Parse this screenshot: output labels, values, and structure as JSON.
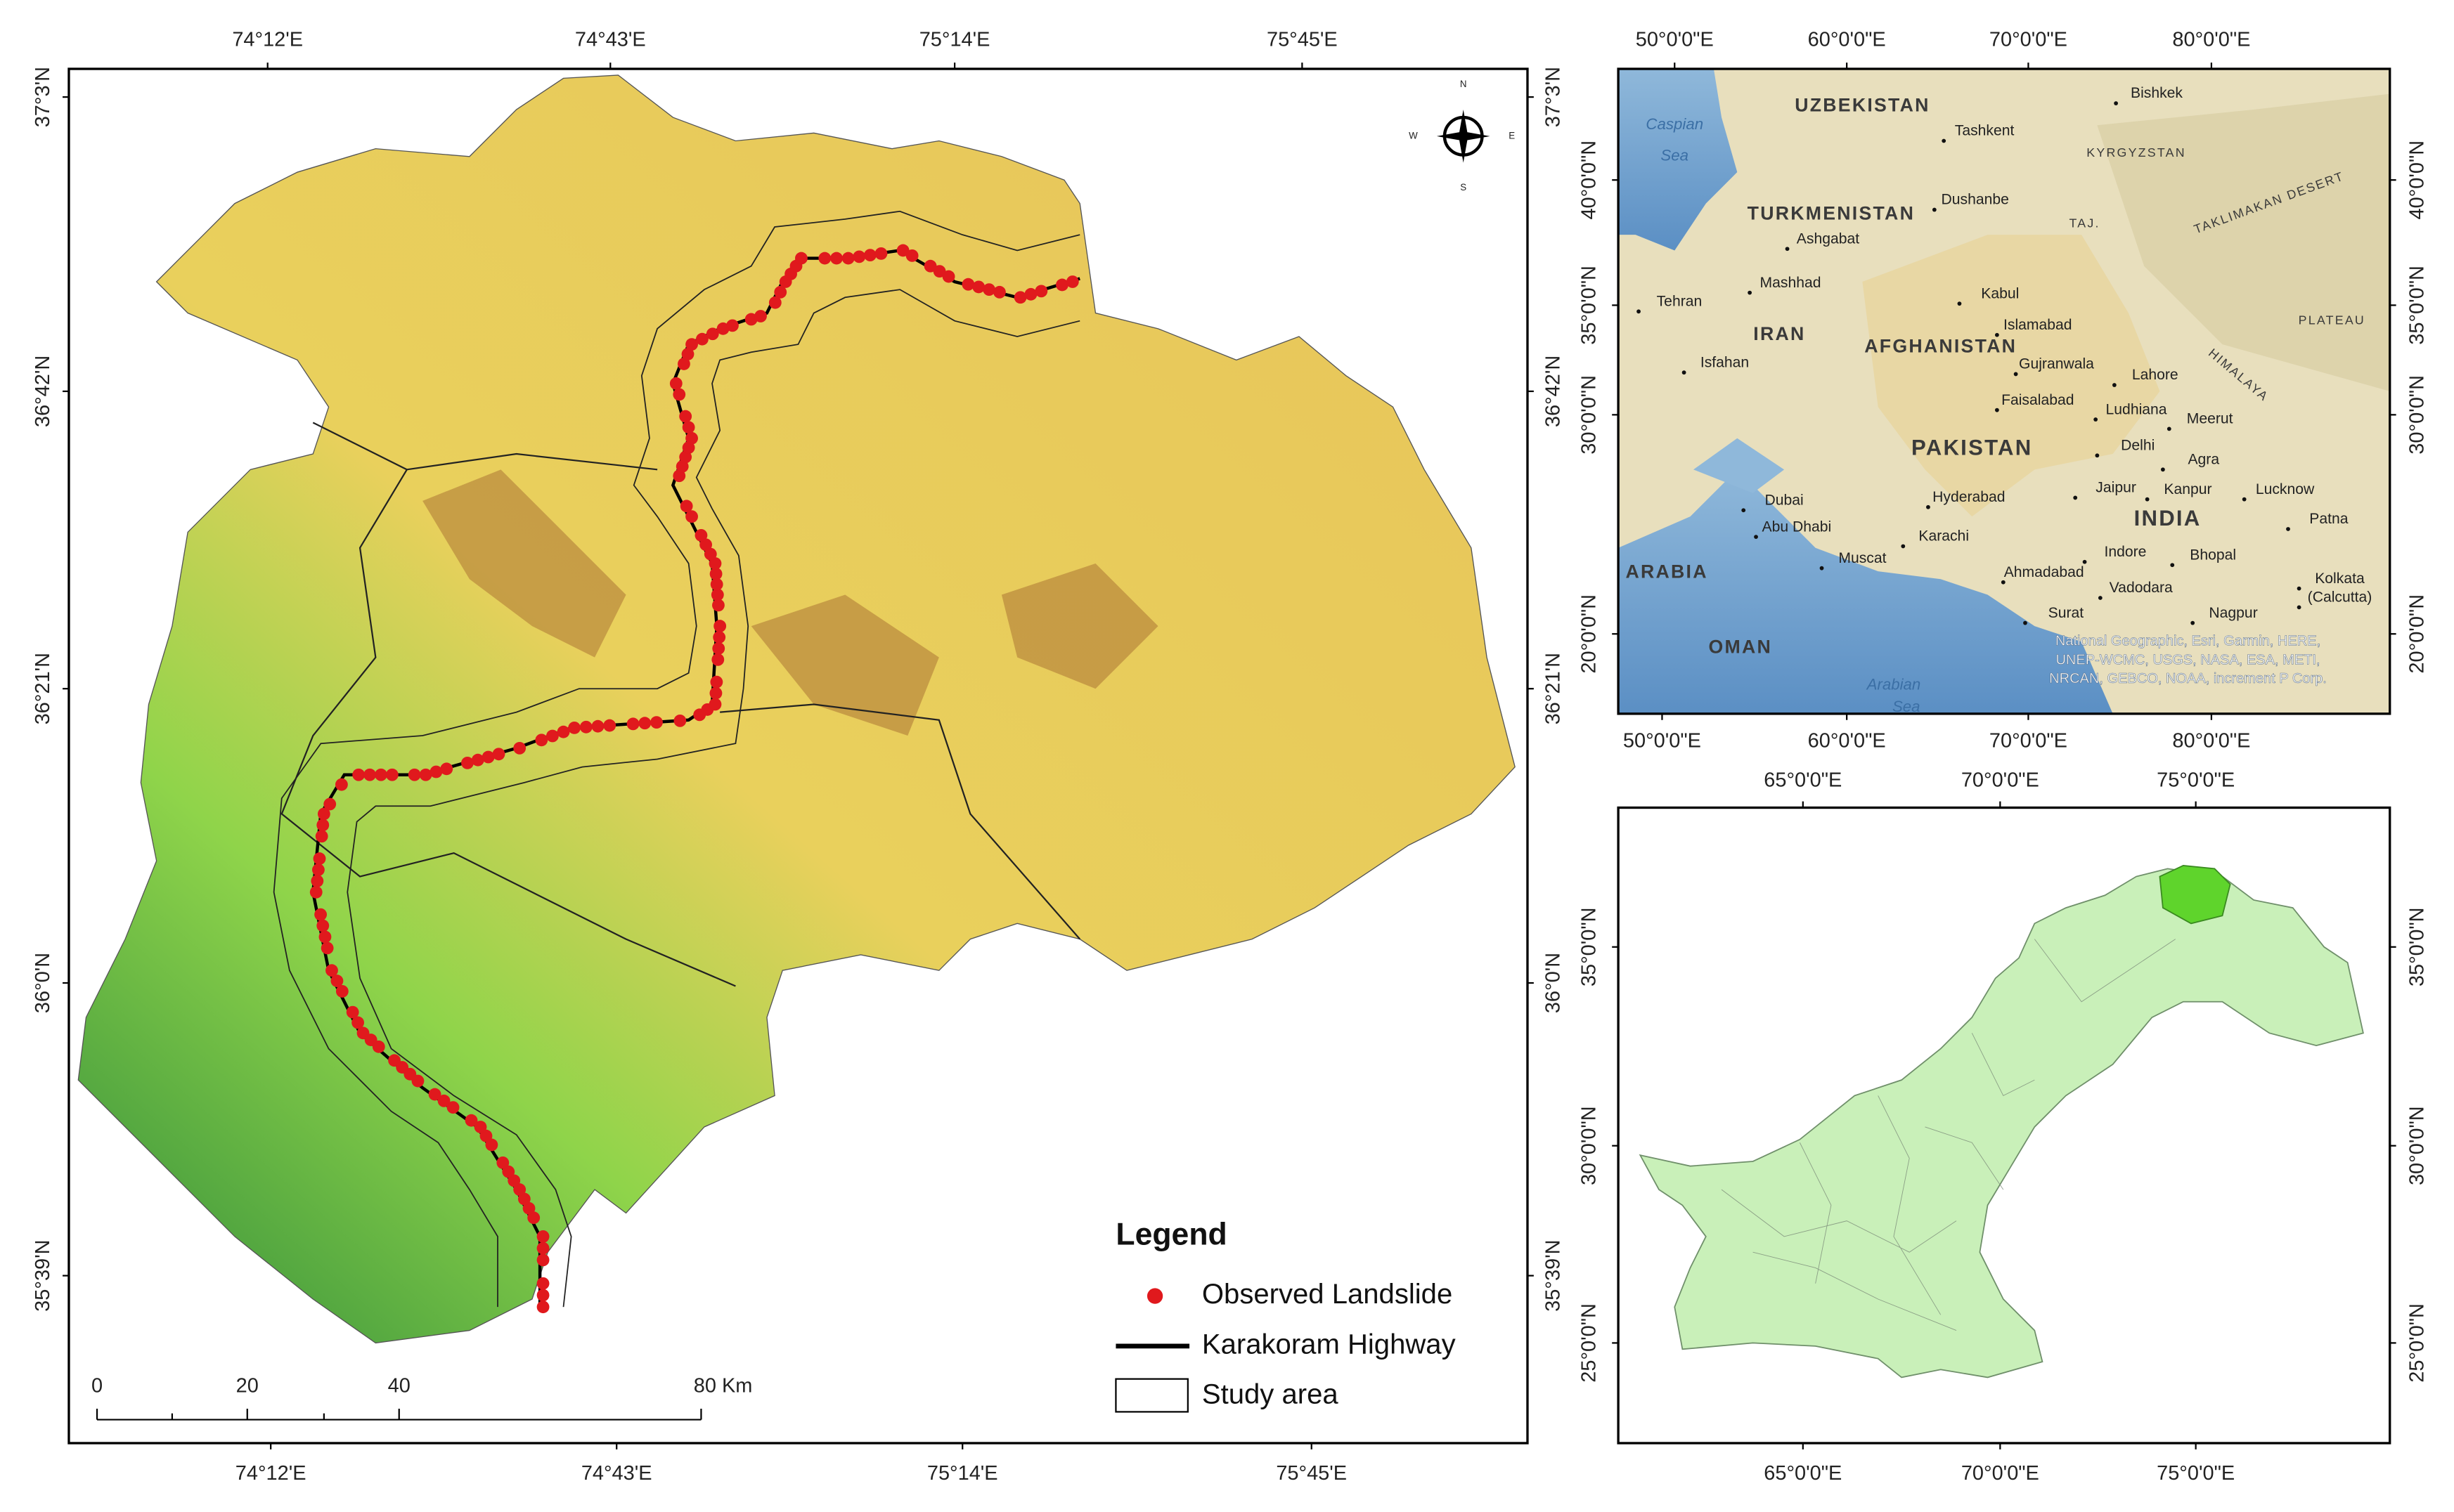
{
  "main_map": {
    "top_ticks": [
      "74°12'E",
      "74°43'E",
      "75°14'E",
      "75°45'E"
    ],
    "bottom_ticks": [
      "74°12'E",
      "74°43'E",
      "75°14'E",
      "75°45'E"
    ],
    "left_ticks": [
      "37°3'N",
      "36°42'N",
      "36°21'N",
      "36°0'N",
      "35°39'N"
    ],
    "right_ticks": [
      "37°3'N",
      "36°42'N",
      "36°21'N",
      "36°0'N",
      "35°39'N"
    ],
    "north_arrow": [
      "N",
      "E",
      "S",
      "W"
    ],
    "legend": {
      "title": "Legend",
      "items": [
        "Observed Landslide",
        "Karakoram Highway",
        "Study area"
      ]
    },
    "scale_bar": [
      "0",
      "20",
      "40",
      "80 Km"
    ]
  },
  "locator_map": {
    "top_ticks": [
      "50°0'0\"E",
      "60°0'0\"E",
      "70°0'0\"E",
      "80°0'0\"E"
    ],
    "bottom_ticks": [
      "50°0'0\"E",
      "60°0'0\"E",
      "70°0'0\"E",
      "80°0'0\"E"
    ],
    "left_ticks": [
      "40°0'0\"N",
      "35°0'0\"N",
      "30°0'0\"N",
      "20°0'0\"N"
    ],
    "right_ticks": [
      "40°0'0\"N",
      "35°0'0\"N",
      "30°0'0\"N",
      "20°0'0\"N"
    ],
    "countries": [
      "UZBEKISTAN",
      "TURKMENISTAN",
      "IRAN",
      "AFGHANISTAN",
      "PAKISTAN",
      "INDIA",
      "ARABIA",
      "OMAN",
      "KYRGYZSTAN",
      "TAJ.",
      "HIMALAYA",
      "TAKLIMAKAN DESERT",
      "PLATEAU"
    ],
    "water": [
      "Caspian",
      "Sea",
      "Arabian",
      "Sea"
    ],
    "places": [
      "Bishkek",
      "Tashkent",
      "Dushanbe",
      "Ashgabat",
      "Mashhad",
      "Tehran",
      "Kabul",
      "Islamabad",
      "Isfahan",
      "Gujranwala",
      "Lahore",
      "Faisalabad",
      "Ludhiana",
      "Meerut",
      "Delhi",
      "Agra",
      "Jaipur",
      "Kanpur",
      "Lucknow",
      "Dubai",
      "Hyderabad",
      "Abu Dhabi",
      "Karachi",
      "Patna",
      "Muscat",
      "Indore",
      "Bhopal",
      "Ahmadabad",
      "Vadodara",
      "Kolkata",
      "(Calcutta)",
      "Surat",
      "Nagpur"
    ],
    "attribution": [
      "National Geographic, Esri, Garmin, HERE,",
      "UNEP-WCMC, USGS, NASA, ESA, METI,",
      "NRCAN, GEBCO, NOAA, increment P Corp."
    ]
  },
  "pakistan_map": {
    "top_ticks": [
      "65°0'0\"E",
      "70°0'0\"E",
      "75°0'0\"E"
    ],
    "bottom_ticks": [
      "65°0'0\"E",
      "70°0'0\"E",
      "75°0'0\"E"
    ],
    "left_ticks": [
      "35°0'0\"N",
      "30°0'0\"N",
      "25°0'0\"N"
    ],
    "right_ticks": [
      "35°0'0\"N",
      "30°0'0\"N",
      "25°0'0\"N"
    ]
  }
}
